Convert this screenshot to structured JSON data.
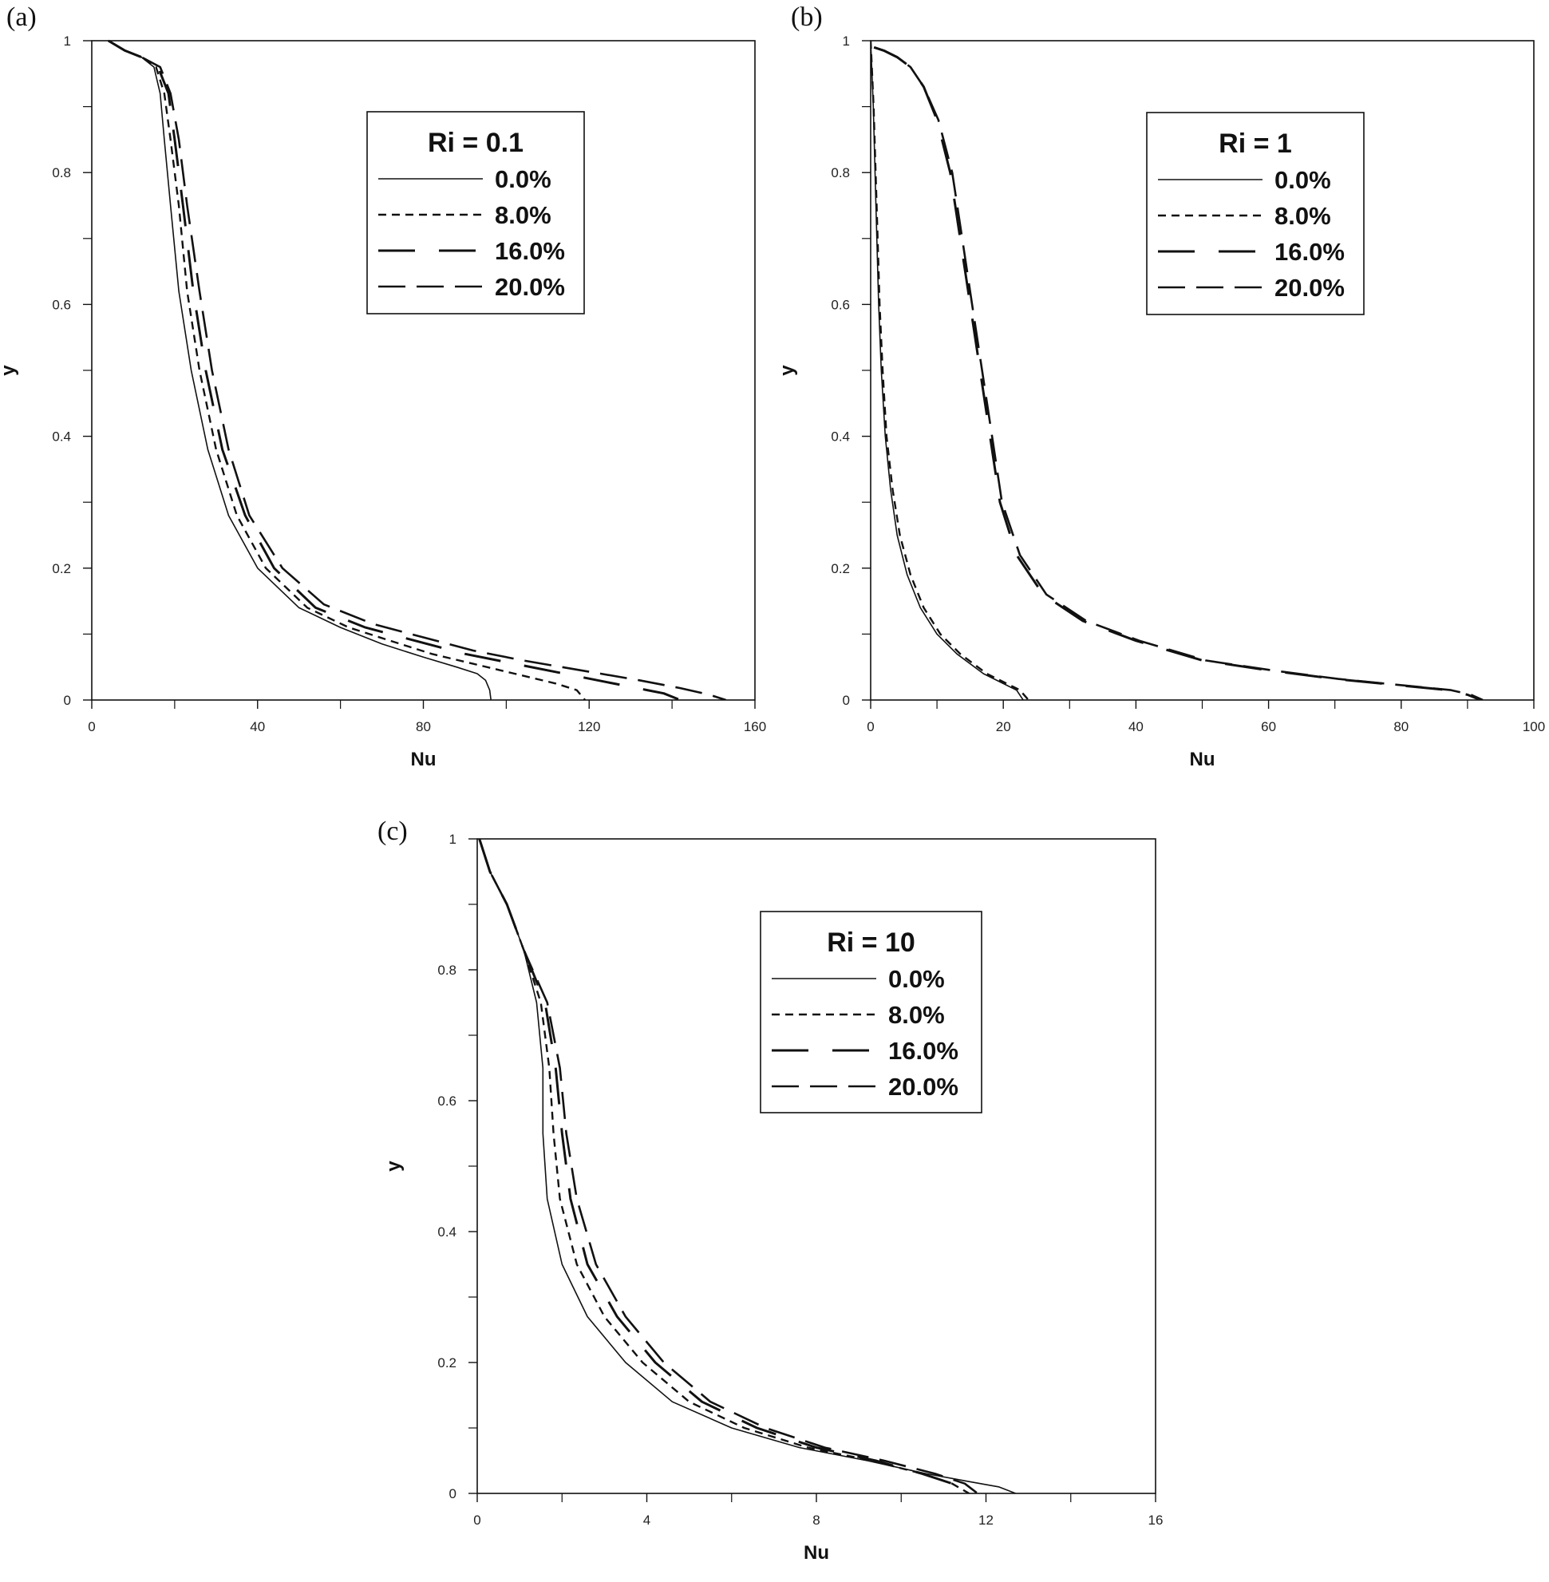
{
  "chart_data": [
    {
      "panel": "(a)",
      "type": "line",
      "xlabel": "Nu",
      "ylabel": "y",
      "xlim": [
        0,
        160
      ],
      "ylim": [
        0,
        1
      ],
      "xticks": [
        0,
        40,
        80,
        120,
        160
      ],
      "yticks": [
        0,
        0.2,
        0.4,
        0.6,
        0.8,
        1
      ],
      "legend_title": "Ri = 0.1",
      "legend_position": "top-right",
      "series": [
        {
          "name": "0.0%",
          "style": "solid",
          "x": [
            4,
            8,
            12,
            15,
            16.5,
            17.5,
            19,
            21,
            24,
            28,
            33,
            40,
            50,
            60,
            70,
            80,
            88,
            93,
            95,
            96,
            96.3
          ],
          "y": [
            1,
            0.985,
            0.975,
            0.96,
            0.92,
            0.85,
            0.75,
            0.62,
            0.5,
            0.38,
            0.28,
            0.2,
            0.14,
            0.11,
            0.085,
            0.065,
            0.05,
            0.04,
            0.03,
            0.015,
            0
          ]
        },
        {
          "name": "8.0%",
          "style": "dash-short",
          "x": [
            4,
            8,
            12,
            15.5,
            17.5,
            19,
            21,
            23,
            26,
            30,
            35,
            42,
            52,
            62,
            72,
            82,
            92,
            102,
            112,
            117,
            119
          ],
          "y": [
            1,
            0.985,
            0.975,
            0.96,
            0.92,
            0.85,
            0.75,
            0.62,
            0.5,
            0.38,
            0.28,
            0.2,
            0.14,
            0.11,
            0.09,
            0.07,
            0.055,
            0.04,
            0.025,
            0.015,
            0
          ]
        },
        {
          "name": "16.0%",
          "style": "dash-long-gap",
          "x": [
            4,
            8,
            12,
            16,
            18.5,
            20,
            22,
            24.5,
            27.5,
            31.5,
            37,
            44,
            54,
            66,
            78,
            90,
            102,
            114,
            126,
            134,
            138,
            142
          ],
          "y": [
            1,
            0.985,
            0.975,
            0.96,
            0.92,
            0.85,
            0.75,
            0.62,
            0.5,
            0.38,
            0.28,
            0.2,
            0.14,
            0.11,
            0.09,
            0.07,
            0.055,
            0.04,
            0.025,
            0.015,
            0.01,
            0
          ]
        },
        {
          "name": "20.0%",
          "style": "dash-long",
          "x": [
            4,
            8,
            12,
            16.5,
            19,
            21,
            23,
            26,
            29,
            33,
            38,
            46,
            56,
            68,
            80,
            92,
            104,
            118,
            132,
            142,
            149,
            153
          ],
          "y": [
            1,
            0.985,
            0.975,
            0.96,
            0.92,
            0.85,
            0.75,
            0.62,
            0.5,
            0.38,
            0.28,
            0.2,
            0.145,
            0.115,
            0.095,
            0.075,
            0.06,
            0.045,
            0.03,
            0.018,
            0.008,
            0
          ]
        }
      ]
    },
    {
      "panel": "(b)",
      "type": "line",
      "xlabel": "Nu",
      "ylabel": "y",
      "xlim": [
        0,
        100
      ],
      "ylim": [
        0,
        1
      ],
      "xticks": [
        0,
        20,
        40,
        60,
        80,
        100
      ],
      "yticks": [
        0,
        0.2,
        0.4,
        0.6,
        0.8,
        1
      ],
      "legend_title": "Ri = 1",
      "legend_position": "top-right",
      "series": [
        {
          "name": "0.0%",
          "style": "solid",
          "x": [
            0,
            0.4,
            0.8,
            1.2,
            1.6,
            2.2,
            3,
            4,
            5.5,
            7.5,
            10,
            13,
            17,
            20,
            22,
            23
          ],
          "y": [
            1,
            0.9,
            0.75,
            0.6,
            0.5,
            0.4,
            0.32,
            0.25,
            0.19,
            0.14,
            0.1,
            0.07,
            0.04,
            0.025,
            0.015,
            0
          ]
        },
        {
          "name": "8.0%",
          "style": "dash-short",
          "x": [
            0,
            0.45,
            0.9,
            1.35,
            1.8,
            2.4,
            3.3,
            4.4,
            6,
            8,
            10.5,
            13.5,
            17.5,
            20.5,
            22.5,
            23.8
          ],
          "y": [
            1,
            0.9,
            0.75,
            0.6,
            0.5,
            0.4,
            0.32,
            0.25,
            0.19,
            0.14,
            0.1,
            0.07,
            0.04,
            0.025,
            0.015,
            0
          ]
        },
        {
          "name": "16.0%",
          "style": "dash-long-gap",
          "x": [
            0.5,
            2,
            4,
            6,
            8,
            10,
            12,
            13.5,
            15,
            16.5,
            18,
            19.5,
            22,
            26,
            32,
            40,
            50,
            60,
            70,
            80,
            87,
            90,
            92
          ],
          "y": [
            0.99,
            0.985,
            0.975,
            0.96,
            0.93,
            0.88,
            0.8,
            0.7,
            0.6,
            0.5,
            0.4,
            0.3,
            0.22,
            0.16,
            0.12,
            0.09,
            0.06,
            0.045,
            0.032,
            0.022,
            0.015,
            0.008,
            0
          ]
        },
        {
          "name": "20.0%",
          "style": "dash-long",
          "x": [
            0.5,
            2,
            4,
            6,
            8,
            10.2,
            12.3,
            13.8,
            15.3,
            16.8,
            18.3,
            19.8,
            22.5,
            26.5,
            32.5,
            40.5,
            50.5,
            60.5,
            70.5,
            80.5,
            87.5,
            90.5,
            92.3
          ],
          "y": [
            0.99,
            0.985,
            0.975,
            0.96,
            0.93,
            0.88,
            0.8,
            0.7,
            0.6,
            0.5,
            0.4,
            0.3,
            0.22,
            0.16,
            0.12,
            0.09,
            0.06,
            0.045,
            0.032,
            0.022,
            0.015,
            0.008,
            0
          ]
        }
      ]
    },
    {
      "panel": "(c)",
      "type": "line",
      "xlabel": "Nu",
      "ylabel": "y",
      "xlim": [
        0,
        16
      ],
      "ylim": [
        0,
        1
      ],
      "xticks": [
        0,
        4,
        8,
        12,
        16
      ],
      "yticks": [
        0,
        0.2,
        0.4,
        0.6,
        0.8,
        1
      ],
      "legend_title": "Ri = 10",
      "legend_position": "top-right",
      "series": [
        {
          "name": "0.0%",
          "style": "solid",
          "x": [
            0.05,
            0.3,
            0.7,
            1.1,
            1.4,
            1.55,
            1.55,
            1.65,
            2,
            2.6,
            3.5,
            4.6,
            6,
            7.6,
            9.2,
            10.6,
            11.6,
            12.3,
            12.7
          ],
          "y": [
            1,
            0.95,
            0.9,
            0.83,
            0.75,
            0.65,
            0.55,
            0.45,
            0.35,
            0.27,
            0.2,
            0.14,
            0.1,
            0.07,
            0.05,
            0.03,
            0.018,
            0.01,
            0
          ]
        },
        {
          "name": "8.0%",
          "style": "dash-short",
          "x": [
            0.05,
            0.3,
            0.7,
            1.1,
            1.5,
            1.7,
            1.8,
            1.95,
            2.35,
            3,
            3.9,
            5,
            6.3,
            7.8,
            9.3,
            10.5,
            11.2,
            11.6
          ],
          "y": [
            1,
            0.95,
            0.9,
            0.83,
            0.75,
            0.65,
            0.55,
            0.45,
            0.35,
            0.27,
            0.2,
            0.14,
            0.1,
            0.07,
            0.05,
            0.03,
            0.015,
            0
          ]
        },
        {
          "name": "16.0%",
          "style": "dash-long-gap",
          "x": [
            0.05,
            0.3,
            0.7,
            1.1,
            1.6,
            1.85,
            2,
            2.2,
            2.6,
            3.3,
            4.2,
            5.3,
            6.6,
            8,
            9.4,
            10.5,
            11.2,
            11.4
          ],
          "y": [
            1,
            0.95,
            0.9,
            0.83,
            0.75,
            0.65,
            0.55,
            0.45,
            0.35,
            0.27,
            0.2,
            0.14,
            0.1,
            0.07,
            0.05,
            0.03,
            0.015,
            0
          ]
        },
        {
          "name": "20.0%",
          "style": "dash-long",
          "x": [
            0.05,
            0.3,
            0.7,
            1.1,
            1.65,
            1.95,
            2.1,
            2.35,
            2.8,
            3.5,
            4.4,
            5.5,
            6.8,
            8.2,
            9.6,
            10.8,
            11.5,
            11.8
          ],
          "y": [
            1,
            0.95,
            0.9,
            0.83,
            0.75,
            0.65,
            0.55,
            0.45,
            0.35,
            0.27,
            0.2,
            0.14,
            0.1,
            0.07,
            0.05,
            0.03,
            0.015,
            0
          ]
        }
      ]
    }
  ]
}
